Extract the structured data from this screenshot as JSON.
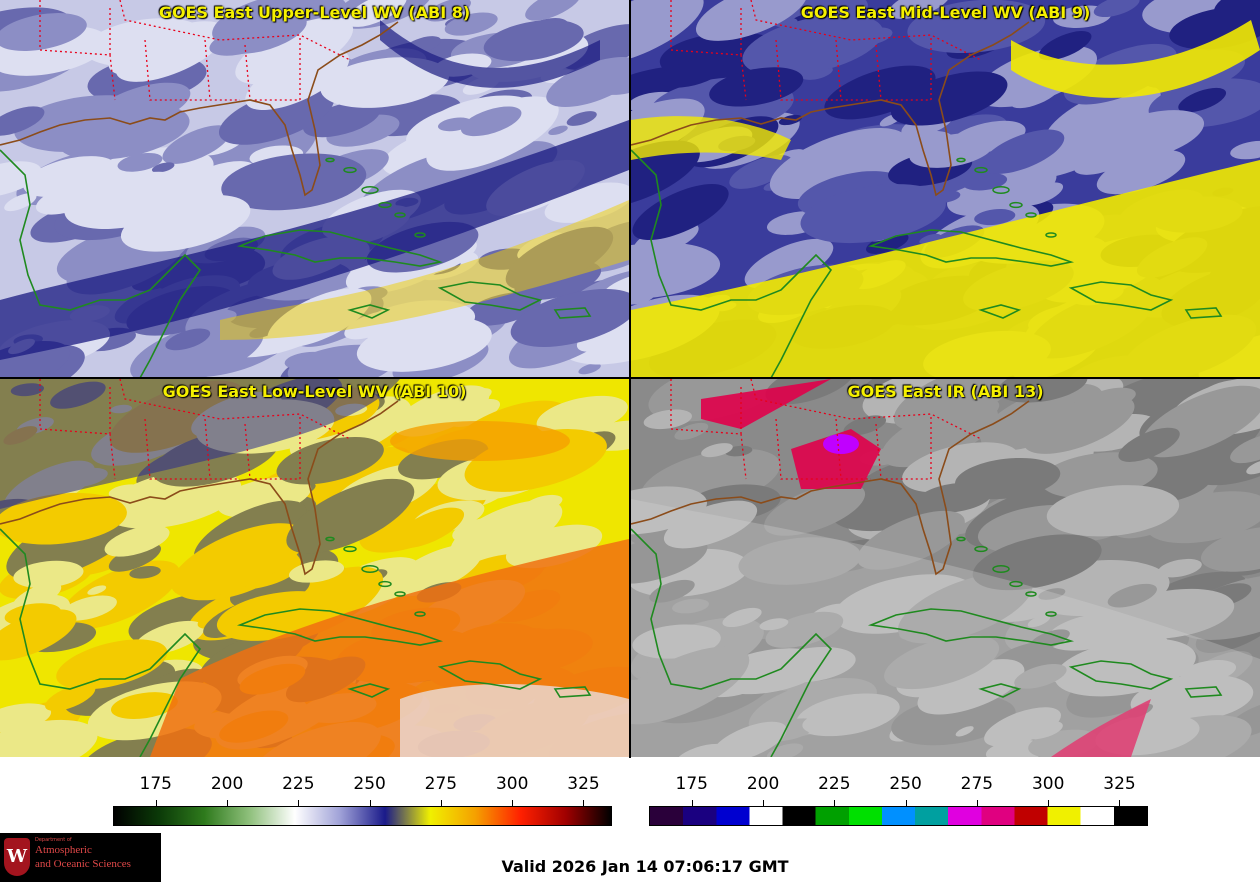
{
  "panels": [
    {
      "id": "p1",
      "title": "GOES East Upper-Level WV (ABI 8)",
      "colors": {
        "bg": "#c7c9e6",
        "dark": "#1a1a80",
        "mid": "#5c5eaa",
        "light": "#eef0fa",
        "warm": "#f0e600"
      }
    },
    {
      "id": "p2",
      "title": "GOES East Mid-Level WV (ABI 9)",
      "colors": {
        "bg": "#3a3c9c",
        "dark": "#0c0c6c",
        "mid": "#6b6db8",
        "light": "#e6e8f6",
        "warm": "#f2ea00"
      }
    },
    {
      "id": "p3",
      "title": "GOES East Low-Level WV (ABI 10)",
      "colors": {
        "bg": "#efe600",
        "dark": "#2a2a90",
        "mid": "#f6b400",
        "light": "#e8eaf6",
        "warm": "#f07010"
      }
    },
    {
      "id": "p4",
      "title": "GOES East IR (ABI 13)",
      "colors": {
        "bg": "#8a8a8a",
        "dark": "#6e6e6e",
        "mid": "#a4a4a4",
        "light": "#d8d8d8",
        "warm": "#e0004a"
      }
    }
  ],
  "colorbar_wv": {
    "ticks": [
      "175",
      "200",
      "225",
      "250",
      "275",
      "300",
      "325"
    ],
    "gradient": [
      "#000000",
      "#0b3a08",
      "#2e7a1c",
      "#8fc07c",
      "#ffffff",
      "#a0a2d8",
      "#1a1a8a",
      "#f0f000",
      "#f5a000",
      "#ff2000",
      "#a00000",
      "#000000"
    ]
  },
  "colorbar_ir": {
    "ticks": [
      "175",
      "200",
      "225",
      "250",
      "275",
      "300",
      "325"
    ],
    "segments": [
      "#2a003a",
      "#1a0080",
      "#0000d0",
      "#ffffff",
      "#000000",
      "#00a000",
      "#00e000",
      "#0090ff",
      "#00a0a0",
      "#e000e0",
      "#e00080",
      "#c00000",
      "#f0f000",
      "#ffffff",
      "#000000"
    ]
  },
  "valid_text": "Valid 2026 Jan 14 07:06:17 GMT",
  "logo": {
    "mark": "W",
    "line1": "Department of",
    "line2": "Atmospheric",
    "line3": "and Oceanic Sciences"
  }
}
